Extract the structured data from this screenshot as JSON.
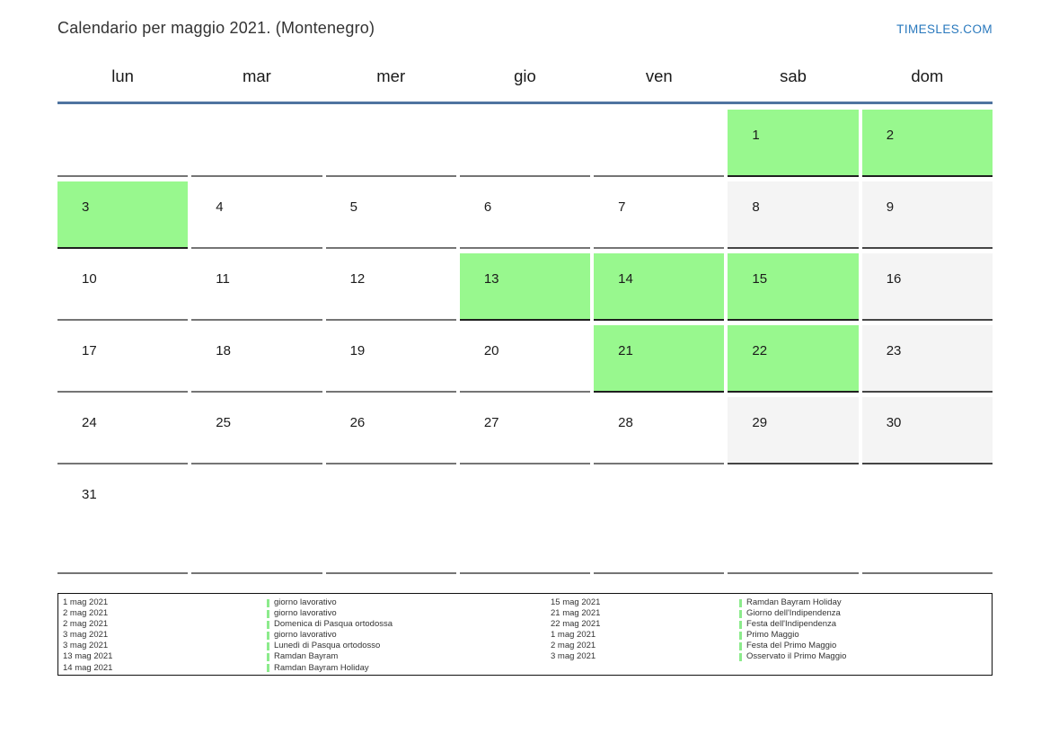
{
  "page": {
    "title": "Calendario per maggio 2021. (Montenegro)",
    "site_link": "TIMESLES.COM"
  },
  "calendar": {
    "weekdays": [
      "lun",
      "mar",
      "mer",
      "gio",
      "ven",
      "sab",
      "dom"
    ],
    "weeks": [
      [
        {
          "day": "",
          "type": "blank"
        },
        {
          "day": "",
          "type": "blank"
        },
        {
          "day": "",
          "type": "blank"
        },
        {
          "day": "",
          "type": "blank"
        },
        {
          "day": "",
          "type": "blank"
        },
        {
          "day": "1",
          "type": "holiday"
        },
        {
          "day": "2",
          "type": "holiday"
        }
      ],
      [
        {
          "day": "3",
          "type": "holiday"
        },
        {
          "day": "4",
          "type": "workday"
        },
        {
          "day": "5",
          "type": "workday"
        },
        {
          "day": "6",
          "type": "workday"
        },
        {
          "day": "7",
          "type": "workday"
        },
        {
          "day": "8",
          "type": "weekend"
        },
        {
          "day": "9",
          "type": "weekend"
        }
      ],
      [
        {
          "day": "10",
          "type": "workday"
        },
        {
          "day": "11",
          "type": "workday"
        },
        {
          "day": "12",
          "type": "workday"
        },
        {
          "day": "13",
          "type": "holiday"
        },
        {
          "day": "14",
          "type": "holiday"
        },
        {
          "day": "15",
          "type": "holiday"
        },
        {
          "day": "16",
          "type": "weekend"
        }
      ],
      [
        {
          "day": "17",
          "type": "workday"
        },
        {
          "day": "18",
          "type": "workday"
        },
        {
          "day": "19",
          "type": "workday"
        },
        {
          "day": "20",
          "type": "workday"
        },
        {
          "day": "21",
          "type": "holiday"
        },
        {
          "day": "22",
          "type": "holiday"
        },
        {
          "day": "23",
          "type": "weekend"
        }
      ],
      [
        {
          "day": "24",
          "type": "workday"
        },
        {
          "day": "25",
          "type": "workday"
        },
        {
          "day": "26",
          "type": "workday"
        },
        {
          "day": "27",
          "type": "workday"
        },
        {
          "day": "28",
          "type": "workday"
        },
        {
          "day": "29",
          "type": "weekend"
        },
        {
          "day": "30",
          "type": "weekend"
        }
      ],
      [
        {
          "day": "31",
          "type": "workday"
        },
        {
          "day": "",
          "type": "blank"
        },
        {
          "day": "",
          "type": "blank"
        },
        {
          "day": "",
          "type": "blank"
        },
        {
          "day": "",
          "type": "blank"
        },
        {
          "day": "",
          "type": "blank"
        },
        {
          "day": "",
          "type": "blank"
        }
      ]
    ]
  },
  "legend": {
    "columns": [
      {
        "entries": [
          {
            "date": "1 mag 2021",
            "name": "giorno lavorativo"
          },
          {
            "date": "2 mag 2021",
            "name": "giorno lavorativo"
          },
          {
            "date": "2 mag 2021",
            "name": "Domenica di Pasqua ortodossa"
          },
          {
            "date": "3 mag 2021",
            "name": "giorno lavorativo"
          },
          {
            "date": "3 mag 2021",
            "name": "Lunedì di Pasqua ortodosso"
          },
          {
            "date": "13 mag 2021",
            "name": "Ramdan Bayram"
          },
          {
            "date": "14 mag 2021",
            "name": "Ramdan Bayram Holiday"
          }
        ]
      },
      {
        "entries": [
          {
            "date": "15 mag 2021",
            "name": "Ramdan Bayram Holiday"
          },
          {
            "date": "21 mag 2021",
            "name": "Giorno dell'Indipendenza"
          },
          {
            "date": "22 mag 2021",
            "name": "Festa dell'Indipendenza"
          },
          {
            "date": "1 mag 2021",
            "name": "Primo Maggio"
          },
          {
            "date": "2 mag 2021",
            "name": "Festa del Primo Maggio"
          },
          {
            "date": "3 mag 2021",
            "name": "Osservato il Primo Maggio"
          }
        ]
      }
    ]
  },
  "colors": {
    "holiday_bg": "#98f88e",
    "weekend_bg": "#f4f4f4",
    "header_rule": "#4f74a0",
    "link_blue": "#2878bd",
    "cell_border": "#757575",
    "weekend_border": "#454545",
    "holiday_border": "#1f1f1f",
    "legend_marker": "#8ceb8c"
  }
}
